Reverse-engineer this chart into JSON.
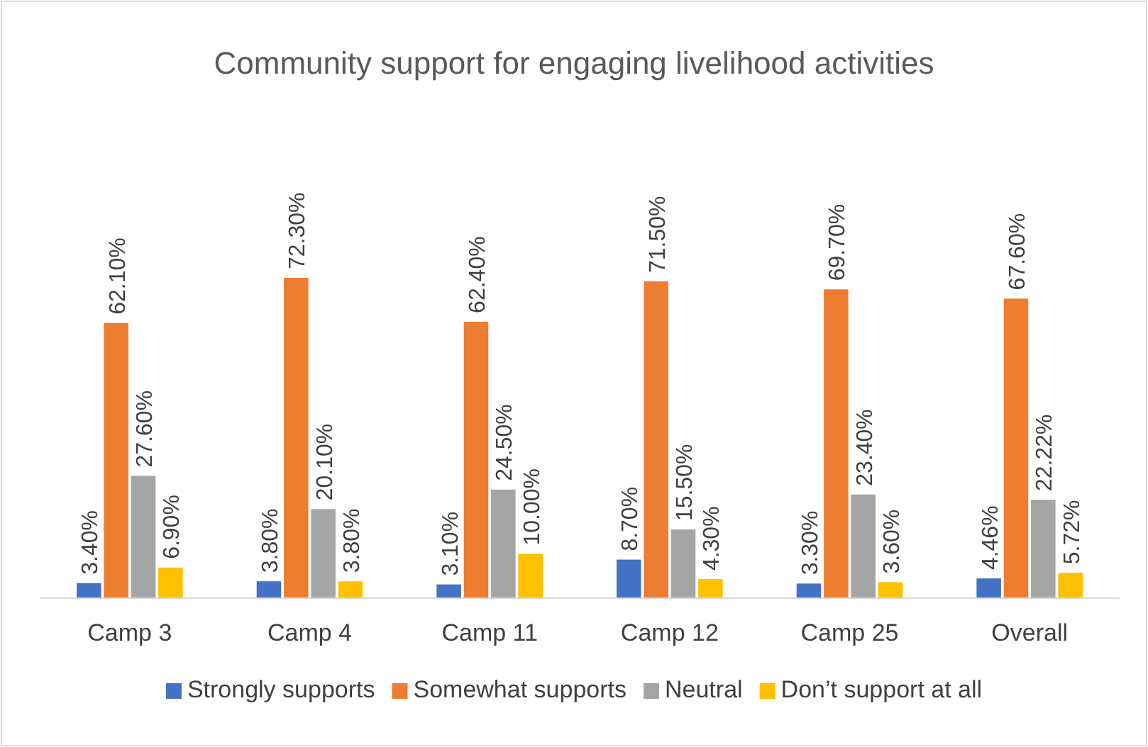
{
  "chart_data": {
    "type": "bar",
    "title": "Community support for engaging livelihood activities",
    "categories": [
      "Camp 3",
      "Camp 4",
      "Camp 11",
      "Camp 12",
      "Camp 25",
      "Overall"
    ],
    "series": [
      {
        "name": "Strongly supports",
        "color": "#4472c4",
        "values": [
          3.4,
          3.8,
          3.1,
          8.7,
          3.3,
          4.46
        ],
        "value_labels": [
          "3.40%",
          "3.80%",
          "3.10%",
          "8.70%",
          "3.30%",
          "4.46%"
        ]
      },
      {
        "name": "Somewhat supports",
        "color": "#ed7d31",
        "values": [
          62.1,
          72.3,
          62.4,
          71.5,
          69.7,
          67.6
        ],
        "value_labels": [
          "62.10%",
          "72.30%",
          "62.40%",
          "71.50%",
          "69.70%",
          "67.60%"
        ]
      },
      {
        "name": "Neutral",
        "color": "#a5a5a5",
        "values": [
          27.6,
          20.1,
          24.5,
          15.5,
          23.4,
          22.22
        ],
        "value_labels": [
          "27.60%",
          "20.10%",
          "24.50%",
          "15.50%",
          "23.40%",
          "22.22%"
        ]
      },
      {
        "name": "Don’t support at all",
        "color": "#ffc000",
        "values": [
          6.9,
          3.8,
          10.0,
          4.3,
          3.6,
          5.72
        ],
        "value_labels": [
          "6.90%",
          "3.80%",
          "10.00%",
          "4.30%",
          "3.60%",
          "5.72%"
        ]
      }
    ],
    "legend": "bottom"
  }
}
